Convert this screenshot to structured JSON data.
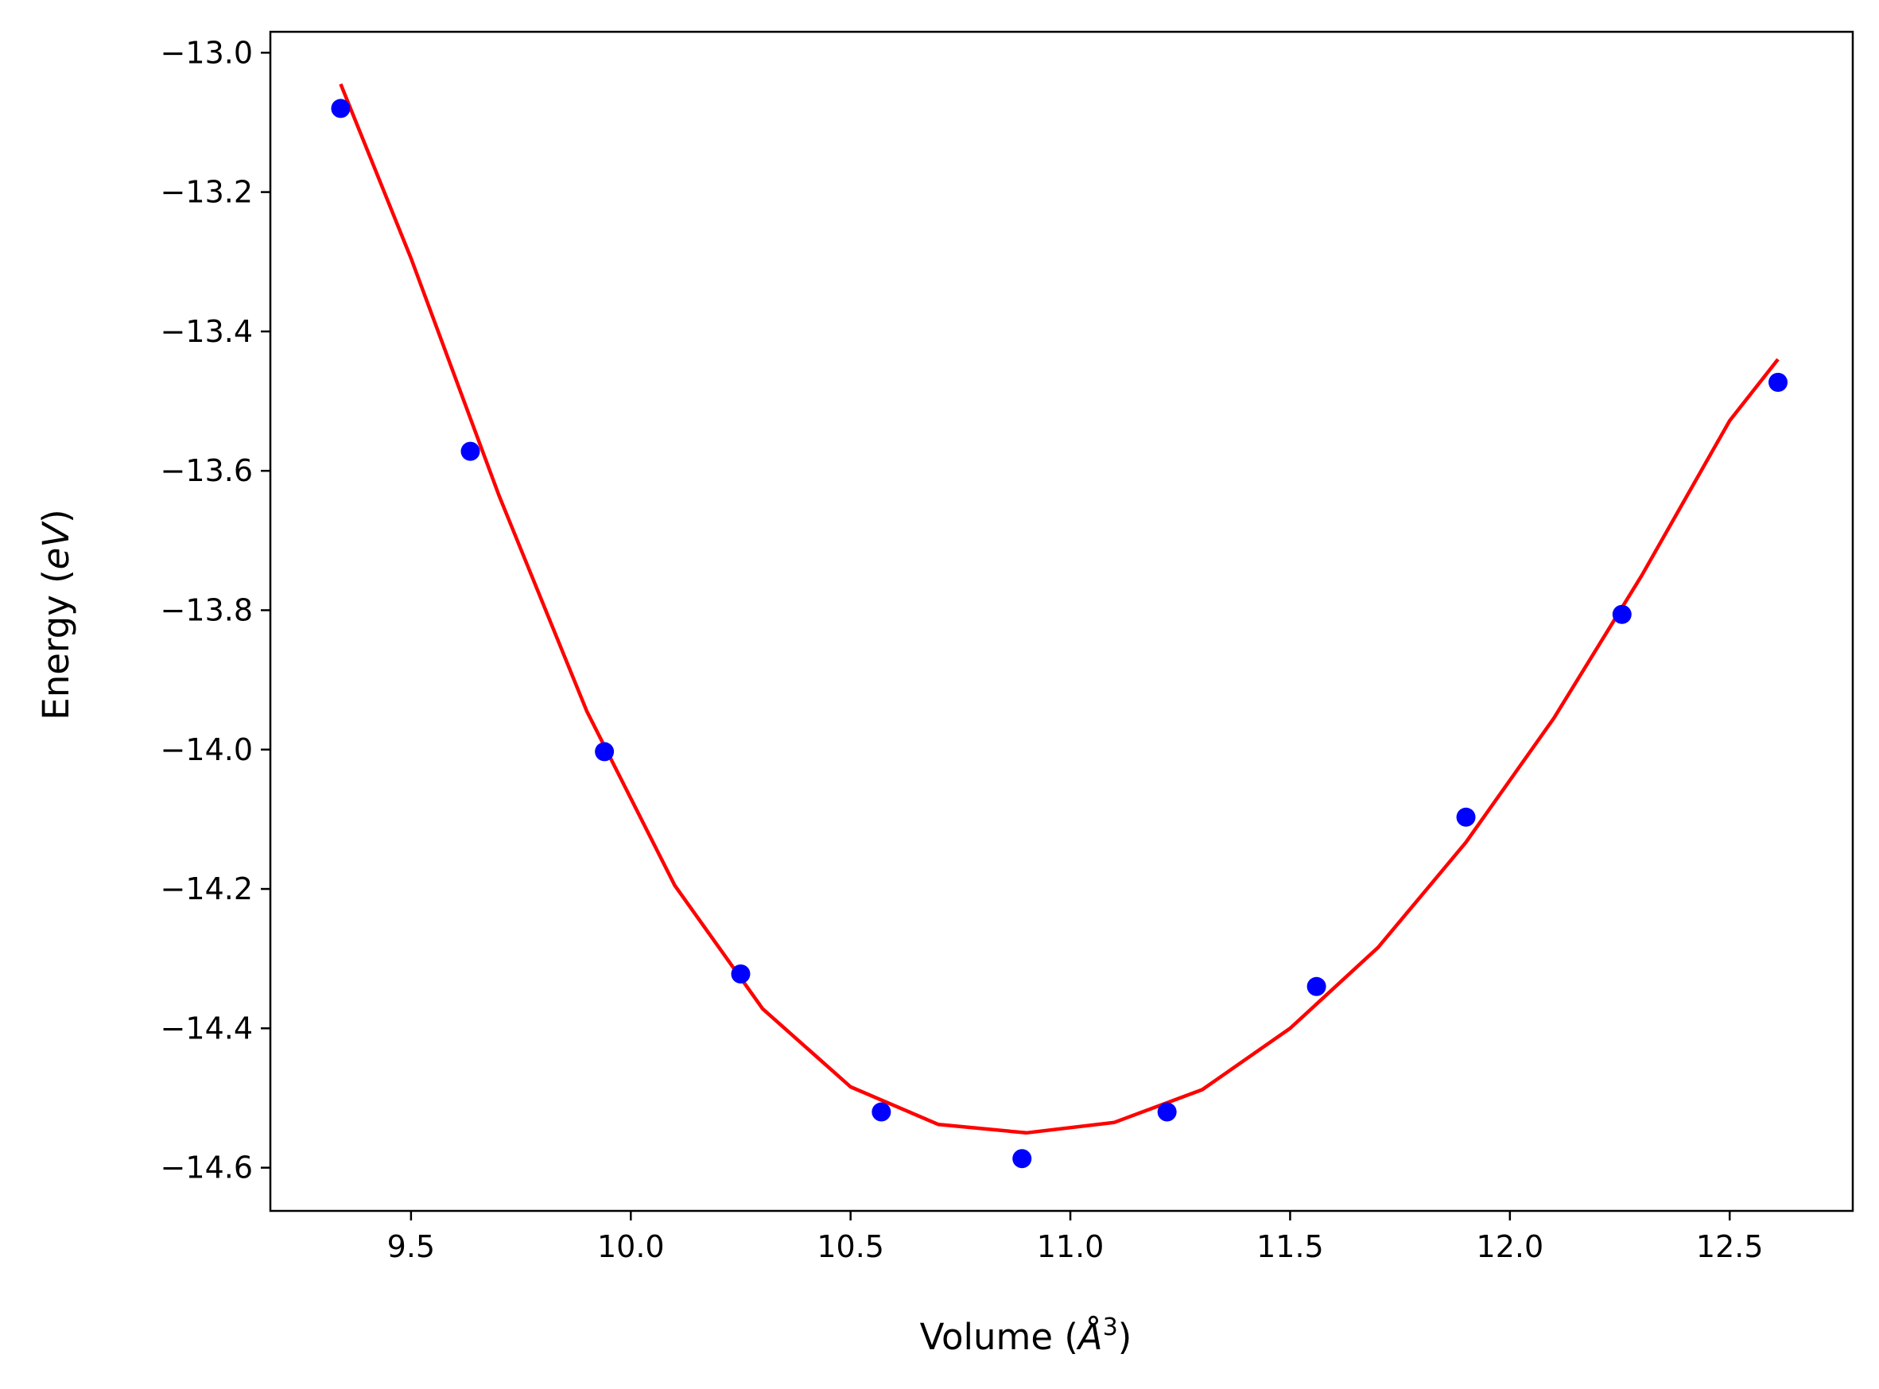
{
  "chart_data": {
    "type": "scatter",
    "title": "",
    "xlabel_parts": {
      "prefix": "Volume (",
      "symbol": "Å",
      "superscript": "3",
      "suffix": ")"
    },
    "ylabel_parts": {
      "prefix": "Energy (",
      "symbol": "eV",
      "suffix": ")"
    },
    "xlim": [
      9.18,
      12.78
    ],
    "ylim": [
      -14.662,
      -12.97
    ],
    "x_ticks": [
      9.5,
      10.0,
      10.5,
      11.0,
      11.5,
      12.0,
      12.5
    ],
    "x_tick_labels": [
      "9.5",
      "10.0",
      "10.5",
      "11.0",
      "11.5",
      "12.0",
      "12.5"
    ],
    "y_ticks": [
      -13.0,
      -13.2,
      -13.4,
      -13.6,
      -13.8,
      -14.0,
      -14.2,
      -14.4,
      -14.6
    ],
    "y_tick_labels": [
      "−13.0",
      "−13.2",
      "−13.4",
      "−13.6",
      "−13.8",
      "−14.0",
      "−14.2",
      "−14.4",
      "−14.6"
    ],
    "grid": false,
    "legend": "none",
    "series": [
      {
        "kind": "points",
        "color": "#0000ff",
        "x": [
          9.34,
          9.635,
          9.94,
          10.25,
          10.57,
          10.89,
          11.22,
          11.56,
          11.9,
          12.255,
          12.61
        ],
        "y": [
          -13.08,
          -13.572,
          -14.003,
          -14.322,
          -14.52,
          -14.587,
          -14.52,
          -14.34,
          -14.097,
          -13.806,
          -13.473
        ]
      },
      {
        "kind": "fit-line",
        "color": "#ff0000",
        "x": [
          9.34,
          9.5,
          9.7,
          9.9,
          10.1,
          10.3,
          10.5,
          10.7,
          10.9,
          11.1,
          11.3,
          11.5,
          11.7,
          11.9,
          12.1,
          12.3,
          12.5,
          12.61
        ],
        "y": [
          -13.045,
          -13.295,
          -13.635,
          -13.945,
          -14.195,
          -14.372,
          -14.484,
          -14.538,
          -14.55,
          -14.535,
          -14.488,
          -14.4,
          -14.284,
          -14.133,
          -13.955,
          -13.75,
          -13.528,
          -13.44
        ]
      }
    ]
  }
}
